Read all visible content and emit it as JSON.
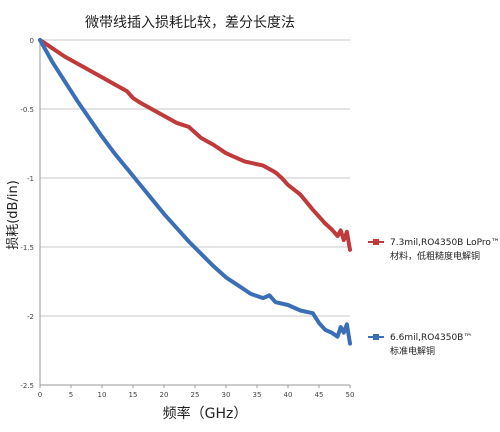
{
  "chart_data": {
    "type": "line",
    "title": "微带线插入损耗比较，差分长度法",
    "xlabel": "频率（GHz）",
    "ylabel": "损耗(dB/in)",
    "xlim": [
      0,
      50
    ],
    "ylim": [
      -2.5,
      0
    ],
    "x_ticks": [
      "0",
      "5",
      "10",
      "15",
      "20",
      "25",
      "30",
      "35",
      "40",
      "45",
      "50"
    ],
    "y_ticks": [
      "0",
      "-0.5",
      "-1",
      "-1.5",
      "-2",
      "-2.5"
    ],
    "grid": true,
    "legend_position": "right",
    "series": [
      {
        "name": "7.3mil,RO4350B LoPro™材料，低粗糙度电解铜",
        "name_lines": [
          "7.3mil,RO4350B LoPro™",
          "材料，低粗糙度电解铜"
        ],
        "color": "#c0393b",
        "x": [
          0,
          1,
          2,
          4,
          6,
          8,
          10,
          12,
          14,
          15,
          16,
          18,
          20,
          22,
          24,
          25,
          26,
          28,
          30,
          32,
          33,
          34,
          36,
          38,
          39,
          40,
          42,
          44,
          45,
          46,
          47,
          48,
          48.5,
          49,
          49.5,
          50
        ],
        "y": [
          0,
          -0.03,
          -0.06,
          -0.12,
          -0.17,
          -0.22,
          -0.27,
          -0.32,
          -0.37,
          -0.42,
          -0.45,
          -0.5,
          -0.55,
          -0.6,
          -0.63,
          -0.67,
          -0.71,
          -0.76,
          -0.82,
          -0.86,
          -0.88,
          -0.89,
          -0.91,
          -0.96,
          -1.0,
          -1.05,
          -1.12,
          -1.23,
          -1.28,
          -1.33,
          -1.37,
          -1.42,
          -1.38,
          -1.45,
          -1.39,
          -1.52
        ]
      },
      {
        "name": "6.6mil,RO4350B™标准电解铜",
        "name_lines": [
          "6.6mil,RO4350B™",
          "标准电解铜"
        ],
        "color": "#3a6fb8",
        "x": [
          0,
          1,
          2,
          4,
          6,
          8,
          10,
          12,
          14,
          16,
          18,
          20,
          22,
          24,
          26,
          28,
          30,
          32,
          34,
          36,
          37,
          38,
          40,
          42,
          44,
          45,
          46,
          47,
          48,
          48.5,
          49,
          49.5,
          50
        ],
        "y": [
          0,
          -0.08,
          -0.16,
          -0.3,
          -0.44,
          -0.57,
          -0.7,
          -0.82,
          -0.93,
          -1.04,
          -1.15,
          -1.26,
          -1.36,
          -1.46,
          -1.55,
          -1.64,
          -1.72,
          -1.78,
          -1.84,
          -1.87,
          -1.85,
          -1.9,
          -1.92,
          -1.96,
          -1.98,
          -2.05,
          -2.1,
          -2.12,
          -2.15,
          -2.08,
          -2.12,
          -2.06,
          -2.2
        ]
      }
    ]
  }
}
